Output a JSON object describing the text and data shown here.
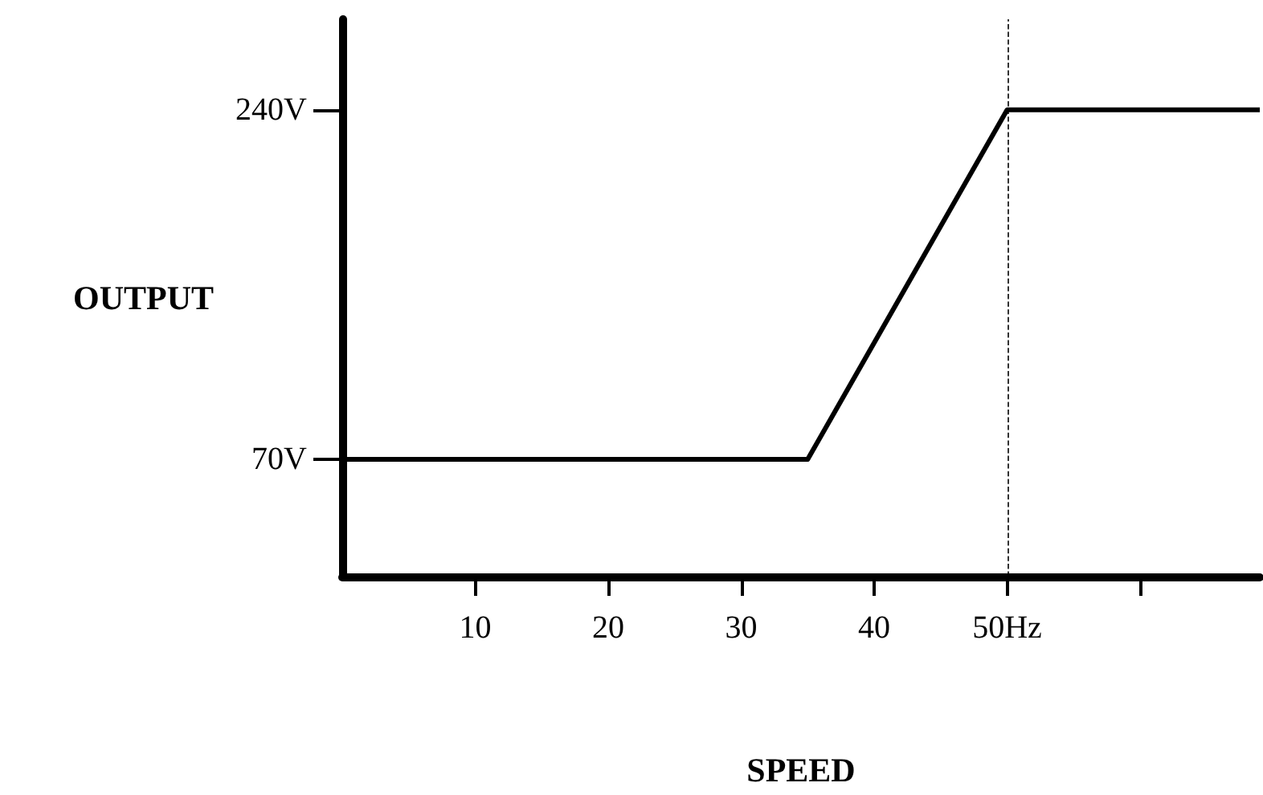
{
  "chart_data": {
    "type": "line",
    "xlabel": "SPEED",
    "ylabel": "OUTPUT",
    "x": [
      0,
      35,
      50,
      69
    ],
    "series": [
      {
        "color": "#000000",
        "values": [
          70,
          70,
          240,
          240
        ]
      }
    ],
    "xlim": [
      0,
      69
    ],
    "ylim": [
      13,
      284
    ],
    "xticks": [
      10,
      20,
      30,
      40,
      {
        "value": 50,
        "label": "50Hz"
      },
      {
        "value": 60,
        "label": null
      }
    ],
    "yticks": [
      {
        "value": 70,
        "label": "70V"
      },
      {
        "value": 240,
        "label": "240V"
      }
    ],
    "ref_lines": [
      {
        "axis": "x",
        "value": 50,
        "color": "#000000",
        "line_style": "dashed"
      }
    ],
    "grid": false,
    "marker": "none",
    "line_style": "solid"
  }
}
